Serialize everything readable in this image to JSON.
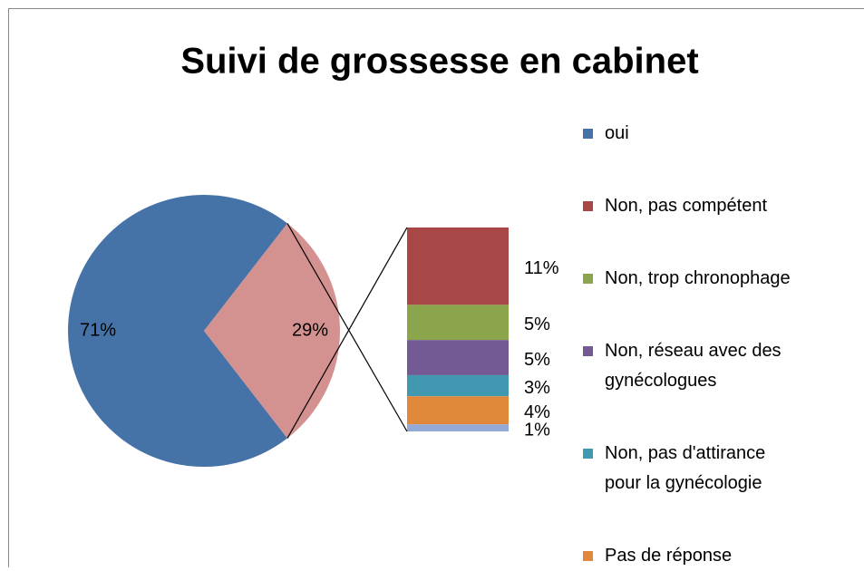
{
  "chart_data": {
    "type": "pie",
    "title": "Suivi de grossesse en cabinet",
    "pie": {
      "categories": [
        "oui",
        null
      ],
      "values": [
        71,
        29
      ],
      "value_labels": [
        "71%",
        "29%"
      ],
      "colors": [
        "#4572a7",
        "#d39190"
      ]
    },
    "bar": {
      "categories": [
        "Non, pas compétent",
        "Non, trop chronophage",
        "Non, réseau avec des gynécologues",
        "Non, pas d'attirance pour la gynécologie",
        "Pas de réponse",
        null
      ],
      "values": [
        11,
        5,
        5,
        3,
        4,
        1
      ],
      "value_labels": [
        "11%",
        "5%",
        "5%",
        "3%",
        "4%",
        "1%"
      ],
      "colors": [
        "#a84846",
        "#8aa54b",
        "#735a94",
        "#4099b0",
        "#e0883c",
        "#94aad6"
      ]
    }
  }
}
